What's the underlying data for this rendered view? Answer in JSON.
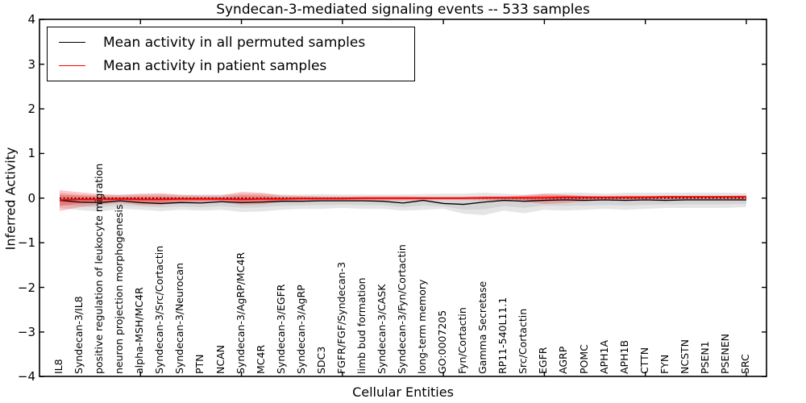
{
  "figure": {
    "title": "Syndecan-3-mediated signaling events -- 533 samples",
    "xlabel": "Cellular Entities",
    "ylabel": "Inferred Activity"
  },
  "legend": {
    "items": [
      {
        "label": "Mean activity in all permuted samples",
        "color": "#000000"
      },
      {
        "label": "Mean activity in patient samples",
        "color": "#ff0000"
      }
    ]
  },
  "chart_data": {
    "type": "line",
    "title": "Syndecan-3-mediated signaling events -- 533 samples",
    "xlabel": "Cellular Entities",
    "ylabel": "Inferred Activity",
    "ylim": [
      -4,
      4
    ],
    "yticks": [
      4,
      3,
      2,
      1,
      0,
      -1,
      -2,
      -3,
      -4
    ],
    "grid": false,
    "legend_position": "upper left",
    "zero_line": "dotted black at y=0",
    "categories": [
      "IL8",
      "Syndecan-3/IL8",
      "positive regulation of leukocyte migration",
      "neuron projection morphogenesis",
      "alpha-MSH/MC4R",
      "Syndecan-3/Src/Cortactin",
      "Syndecan-3/Neurocan",
      "PTN",
      "NCAN",
      "Syndecan-3/AgRP/MC4R",
      "MC4R",
      "Syndecan-3/EGFR",
      "Syndecan-3/AgRP",
      "SDC3",
      "FGFR/FGF/Syndecan-3",
      "limb bud formation",
      "Syndecan-3/CASK",
      "Syndecan-3/Fyn/Cortactin",
      "long-term memory",
      "GO:0007205",
      "Fyn/Cortactin",
      "Gamma Secretase",
      "RP11-540L11.1",
      "Src/Cortactin",
      "EGFR",
      "AGRP",
      "POMC",
      "APH1A",
      "APH1B",
      "CTTN",
      "FYN",
      "NCSTN",
      "PSEN1",
      "PSENEN",
      "SRC"
    ],
    "series": [
      {
        "name": "Mean activity in all permuted samples",
        "color": "#000000",
        "values": [
          -0.05,
          -0.09,
          -0.1,
          -0.06,
          -0.1,
          -0.12,
          -0.1,
          -0.11,
          -0.08,
          -0.1,
          -0.09,
          -0.07,
          -0.07,
          -0.06,
          -0.06,
          -0.06,
          -0.07,
          -0.11,
          -0.05,
          -0.12,
          -0.14,
          -0.09,
          -0.05,
          -0.07,
          -0.05,
          -0.04,
          -0.05,
          -0.04,
          -0.05,
          -0.04,
          -0.05,
          -0.04,
          -0.04,
          -0.04,
          -0.04
        ]
      },
      {
        "name": "Mean activity in patient samples",
        "color": "#ff0000",
        "values": [
          -0.04,
          -0.03,
          -0.03,
          -0.02,
          -0.03,
          -0.03,
          -0.02,
          -0.02,
          -0.02,
          -0.03,
          -0.02,
          -0.02,
          -0.01,
          -0.01,
          -0.01,
          0.0,
          0.0,
          0.0,
          0.0,
          0.0,
          0.0,
          0.01,
          0.01,
          0.01,
          0.01,
          0.02,
          0.02,
          0.02,
          0.02,
          0.02,
          0.03,
          0.03,
          0.03,
          0.03,
          0.03
        ]
      }
    ],
    "bands": [
      {
        "name": "permuted-samples-band",
        "color": "rgba(0,0,0,0.10)",
        "upper": [
          0.12,
          0.08,
          0.07,
          0.08,
          0.08,
          0.09,
          0.08,
          0.08,
          0.08,
          0.1,
          0.1,
          0.08,
          0.08,
          0.09,
          0.08,
          0.08,
          0.08,
          0.08,
          0.09,
          0.1,
          0.1,
          0.12,
          0.1,
          0.08,
          0.1,
          0.12,
          0.12,
          0.1,
          0.12,
          0.12,
          0.12,
          0.12,
          0.12,
          0.12,
          0.11
        ],
        "lower": [
          -0.22,
          -0.27,
          -0.3,
          -0.24,
          -0.26,
          -0.29,
          -0.26,
          -0.28,
          -0.26,
          -0.31,
          -0.3,
          -0.26,
          -0.24,
          -0.24,
          -0.22,
          -0.24,
          -0.24,
          -0.28,
          -0.26,
          -0.24,
          -0.35,
          -0.38,
          -0.28,
          -0.34,
          -0.26,
          -0.28,
          -0.26,
          -0.24,
          -0.26,
          -0.24,
          -0.22,
          -0.22,
          -0.22,
          -0.22,
          -0.2
        ]
      },
      {
        "name": "patient-samples-band",
        "color": "rgba(255,0,0,0.22)",
        "upper": [
          0.18,
          0.13,
          0.09,
          0.07,
          0.1,
          0.11,
          0.07,
          0.06,
          0.06,
          0.14,
          0.12,
          0.06,
          0.05,
          0.04,
          0.04,
          0.04,
          0.04,
          0.04,
          0.03,
          0.03,
          0.03,
          0.04,
          0.04,
          0.06,
          0.1,
          0.08,
          0.05,
          0.04,
          0.05,
          0.05,
          0.05,
          0.05,
          0.05,
          0.05,
          0.06
        ],
        "lower": [
          -0.29,
          -0.2,
          -0.15,
          -0.11,
          -0.15,
          -0.16,
          -0.11,
          -0.1,
          -0.09,
          -0.15,
          -0.14,
          -0.09,
          -0.07,
          -0.06,
          -0.06,
          -0.05,
          -0.05,
          -0.05,
          -0.04,
          -0.04,
          -0.04,
          -0.05,
          -0.05,
          -0.08,
          -0.13,
          -0.11,
          -0.07,
          -0.05,
          -0.05,
          -0.05,
          -0.05,
          -0.05,
          -0.05,
          -0.05,
          -0.06
        ]
      }
    ]
  }
}
